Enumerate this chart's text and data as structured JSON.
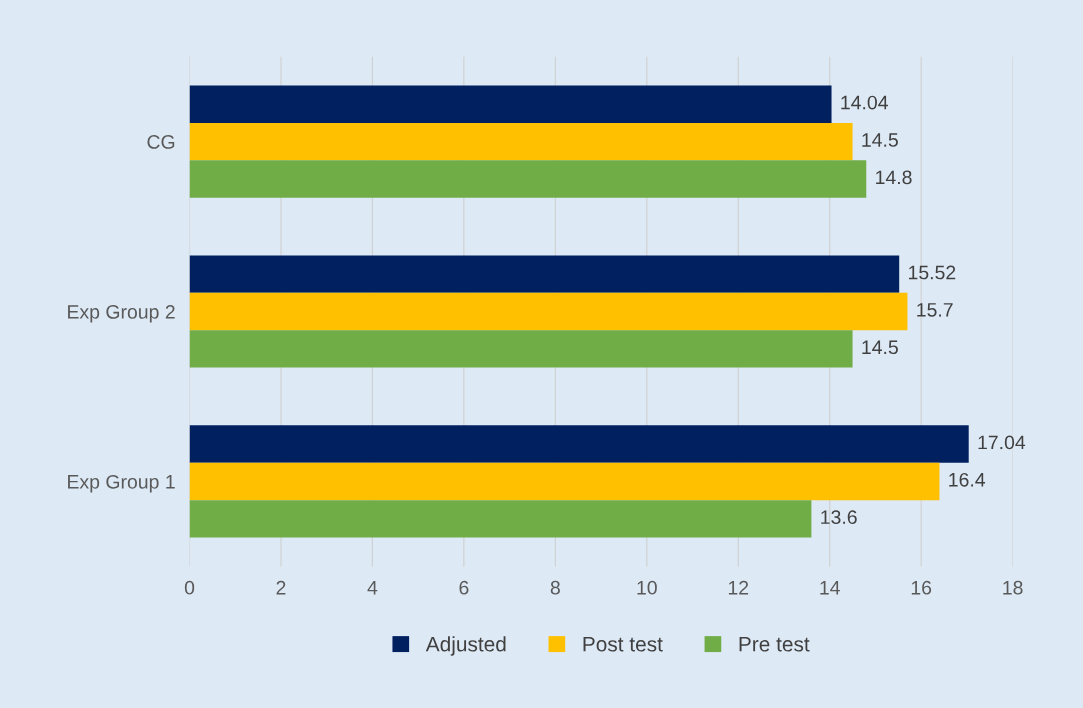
{
  "chart_data": {
    "type": "bar",
    "orientation": "horizontal",
    "categories": [
      "CG",
      "Exp Group 2",
      "Exp Group 1"
    ],
    "series": [
      {
        "name": "Adjusted",
        "color": "#002060",
        "values": [
          14.04,
          15.52,
          17.04
        ]
      },
      {
        "name": "Post test",
        "color": "#ffc000",
        "values": [
          14.5,
          15.7,
          16.4
        ]
      },
      {
        "name": "Pre test",
        "color": "#70ad47",
        "values": [
          14.8,
          14.5,
          13.6
        ]
      }
    ],
    "xlim": [
      0,
      18
    ],
    "xticks": [
      0,
      2,
      4,
      6,
      8,
      10,
      12,
      14,
      16,
      18
    ],
    "grid": "x",
    "legend": "bottom",
    "data_labels": true
  }
}
